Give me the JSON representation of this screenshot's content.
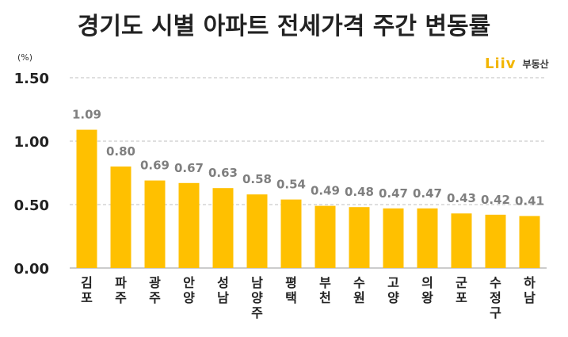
{
  "title": "경기도 시별 아파트 전세가격 주간 변동률",
  "unit_label": "(%)",
  "logo": {
    "mark": "Liiv",
    "text": "부동산"
  },
  "colors": {
    "bar": "#FFC000",
    "label": "#7f7f7f",
    "grid": "#bfbfbf",
    "axis_text": "#222222"
  },
  "chart_data": {
    "type": "bar",
    "title": "경기도 시별 아파트 전세가격 주간 변동률",
    "ylabel": "(%)",
    "xlabel": "",
    "ylim": [
      0,
      1.5
    ],
    "yticks": [
      "0.00",
      "0.50",
      "1.00",
      "1.50"
    ],
    "ytick_values": [
      0,
      0.5,
      1.0,
      1.5
    ],
    "grid": true,
    "categories": [
      "김포",
      "파주",
      "광주",
      "안양",
      "성남",
      "남양주",
      "평택",
      "부천",
      "수원",
      "고양",
      "의왕",
      "군포",
      "수정구",
      "하남"
    ],
    "values": [
      1.09,
      0.8,
      0.69,
      0.67,
      0.63,
      0.58,
      0.54,
      0.49,
      0.48,
      0.47,
      0.47,
      0.43,
      0.42,
      0.41
    ],
    "value_labels": [
      "1.09",
      "0.80",
      "0.69",
      "0.67",
      "0.63",
      "0.58",
      "0.54",
      "0.49",
      "0.48",
      "0.47",
      "0.47",
      "0.43",
      "0.42",
      "0.41"
    ]
  }
}
